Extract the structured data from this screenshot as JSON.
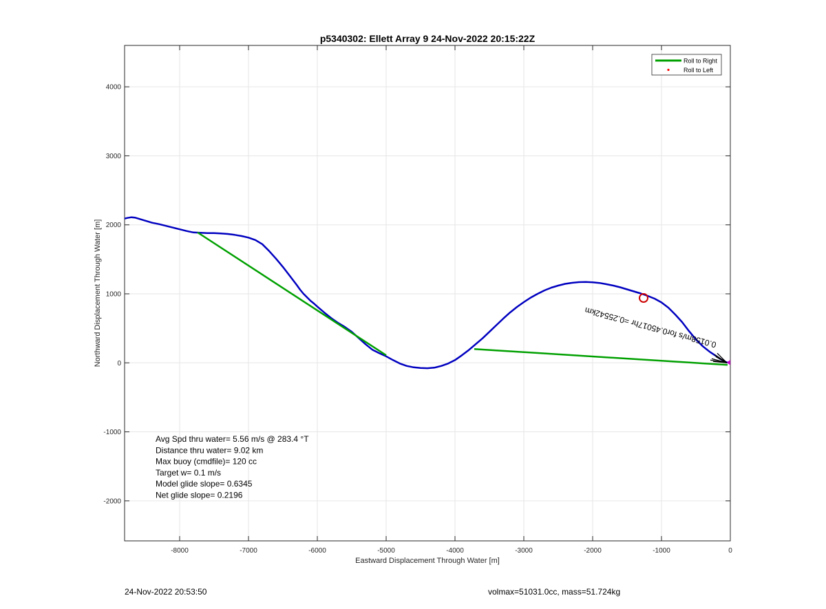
{
  "chart_data": {
    "type": "line",
    "title": "p5340302: Ellett Array 9 24-Nov-2022 20:15:22Z",
    "xlabel": "Eastward Displacement Through Water [m]",
    "ylabel": "Northward Displacement Through Water [m]",
    "xlim": [
      -8800,
      0
    ],
    "ylim": [
      -2580,
      4600
    ],
    "x_ticks": [
      -8000,
      -7000,
      -6000,
      -5000,
      -4000,
      -3000,
      -2000,
      -1000,
      0
    ],
    "x_tick_labels": [
      "-8000",
      "-7000",
      "-6000",
      "-5000",
      "-4000",
      "-3000",
      "-2000",
      "-1000",
      "0"
    ],
    "y_ticks": [
      -2000,
      -1000,
      0,
      1000,
      2000,
      3000,
      4000
    ],
    "y_tick_labels": [
      "-2000",
      "-1000",
      "0",
      "1000",
      "2000",
      "3000",
      "4000"
    ],
    "grid": true,
    "legend_position": "top-right",
    "legend": [
      {
        "label": "Roll to Right",
        "marker": "line",
        "color": "#00a000"
      },
      {
        "label": "Roll to Left",
        "marker": "dot",
        "color": "#ff0000"
      }
    ],
    "series": [
      {
        "name": "Roll to Right",
        "color": "#00a000",
        "segments": [
          [
            [
              -7740,
              1890
            ],
            [
              -5000,
              110
            ]
          ],
          [
            [
              -3720,
              200
            ],
            [
              -40,
              -30
            ]
          ]
        ]
      },
      {
        "color": "#0000c0",
        "x": [
          -8800,
          -8760,
          -8700,
          -8650,
          -8600,
          -8500,
          -8400,
          -8300,
          -8200,
          -8100,
          -8000,
          -7900,
          -7800,
          -7700,
          -7600,
          -7500,
          -7400,
          -7300,
          -7200,
          -7100,
          -7000,
          -6900,
          -6800,
          -6700,
          -6600,
          -6500,
          -6400,
          -6300,
          -6250,
          -6200,
          -6150,
          -6100,
          -6050,
          -6000,
          -5900,
          -5800,
          -5700,
          -5600,
          -5500,
          -5400,
          -5300,
          -5200,
          -5100,
          -5000,
          -4900,
          -4800,
          -4700,
          -4600,
          -4500,
          -4400,
          -4300,
          -4200,
          -4100,
          -4000,
          -3900,
          -3800,
          -3700,
          -3600,
          -3500,
          -3400,
          -3300,
          -3200,
          -3100,
          -3000,
          -2900,
          -2800,
          -2700,
          -2600,
          -2500,
          -2400,
          -2300,
          -2200,
          -2100,
          -2000,
          -1900,
          -1800,
          -1700,
          -1600,
          -1500,
          -1400,
          -1300,
          -1200,
          -1100,
          -1000,
          -900,
          -800,
          -700,
          -600,
          -500,
          -400,
          -300,
          -200,
          -150,
          -100,
          -60,
          -20
        ],
        "y": [
          2090,
          2100,
          2110,
          2105,
          2090,
          2060,
          2030,
          2010,
          1985,
          1960,
          1935,
          1910,
          1890,
          1885,
          1880,
          1880,
          1875,
          1868,
          1855,
          1838,
          1815,
          1780,
          1720,
          1620,
          1510,
          1390,
          1260,
          1130,
          1060,
          1000,
          950,
          900,
          860,
          815,
          730,
          650,
          580,
          520,
          450,
          360,
          270,
          190,
          140,
          95,
          40,
          -10,
          -45,
          -65,
          -75,
          -78,
          -70,
          -45,
          -10,
          40,
          110,
          185,
          270,
          355,
          450,
          545,
          640,
          730,
          810,
          880,
          945,
          1000,
          1050,
          1090,
          1120,
          1145,
          1160,
          1170,
          1172,
          1168,
          1158,
          1140,
          1120,
          1095,
          1065,
          1035,
          1005,
          970,
          930,
          875,
          800,
          700,
          590,
          460,
          340,
          240,
          160,
          95,
          60,
          30,
          10,
          0
        ]
      }
    ],
    "annotations": [
      {
        "text": "Avg Spd thru water=  5.56 m/s @ 283.4 °T"
      },
      {
        "text": "Distance thru water=  9.02 km"
      },
      {
        "text": "Max buoy (cmdfile)= 120 cc"
      },
      {
        "text": "Target w= 0.1 m/s"
      },
      {
        "text": "Model glide slope= 0.6345"
      },
      {
        "text": "Net glide slope= 0.2196"
      }
    ],
    "rotated_annotation": {
      "text": "0.0158m/s for0.45017hr =0.25542km",
      "x": -2000,
      "y": 800,
      "angle": 15
    },
    "circle_marker": {
      "x": -1260,
      "y": 940,
      "color": "#cc0000"
    },
    "arrow_cluster": {
      "x": -50,
      "y": 0,
      "color": "#000000"
    },
    "end_marker": {
      "x": -10,
      "y": 5,
      "color": "#cc00cc"
    }
  },
  "footer": {
    "left": "24-Nov-2022 20:53:50",
    "right": "volmax=51031.0cc, mass=51.724kg"
  }
}
